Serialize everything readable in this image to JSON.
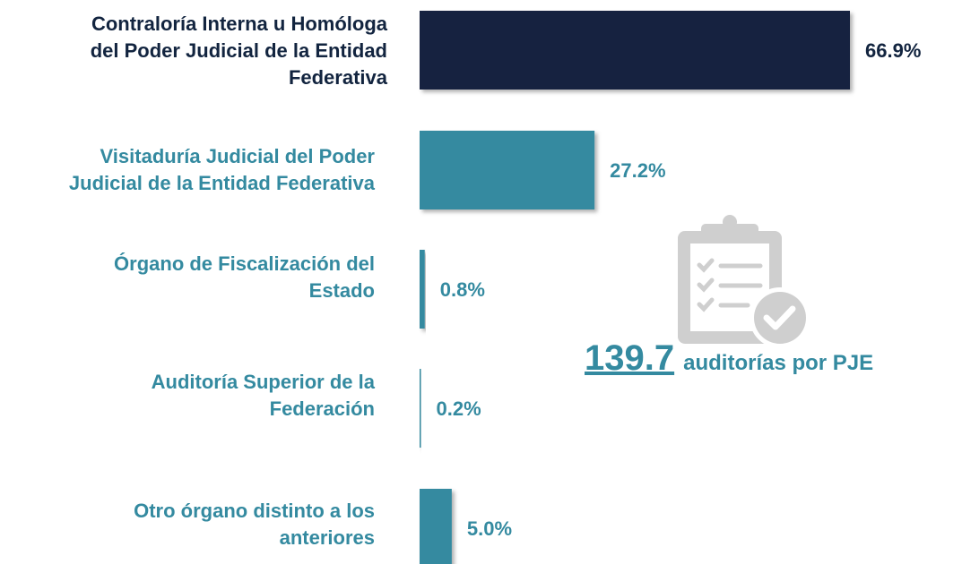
{
  "chart_data": {
    "type": "bar",
    "orientation": "horizontal",
    "categories": [
      "Contraloría Interna u Homóloga del  Poder Judicial de la Entidad Federativa",
      "Visitaduría Judicial del Poder Judicial de la Entidad Federativa",
      "Órgano de Fiscalización del Estado",
      "Auditoría Superior de la Federación",
      "Otro órgano distinto a los anteriores"
    ],
    "values": [
      66.9,
      27.2,
      0.8,
      0.2,
      5.0
    ],
    "value_labels": [
      "66.9%",
      "27.2%",
      "0.8%",
      "0.2%",
      "5.0%"
    ],
    "colors": [
      "#12243f",
      "#348aa0",
      "#348aa0",
      "#348aa0",
      "#348aa0"
    ],
    "annotation": {
      "value": 139.7,
      "text": "auditorías por PJE"
    }
  }
}
